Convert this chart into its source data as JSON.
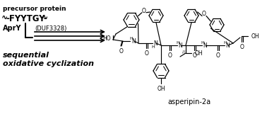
{
  "background_color": "#ffffff",
  "precursor_text": "precursor protein",
  "sequence_prefix": "∿",
  "sequence_mid": "-FYYTGY-",
  "sequence_suffix": "∿",
  "apry_text": "AprY",
  "duf_text": "(DUF3328)",
  "sequential_line1": "sequential",
  "sequential_line2": "oxidative cyclization",
  "product_text": "asperipin-2a",
  "fig_width": 3.78,
  "fig_height": 1.61,
  "dpi": 100
}
